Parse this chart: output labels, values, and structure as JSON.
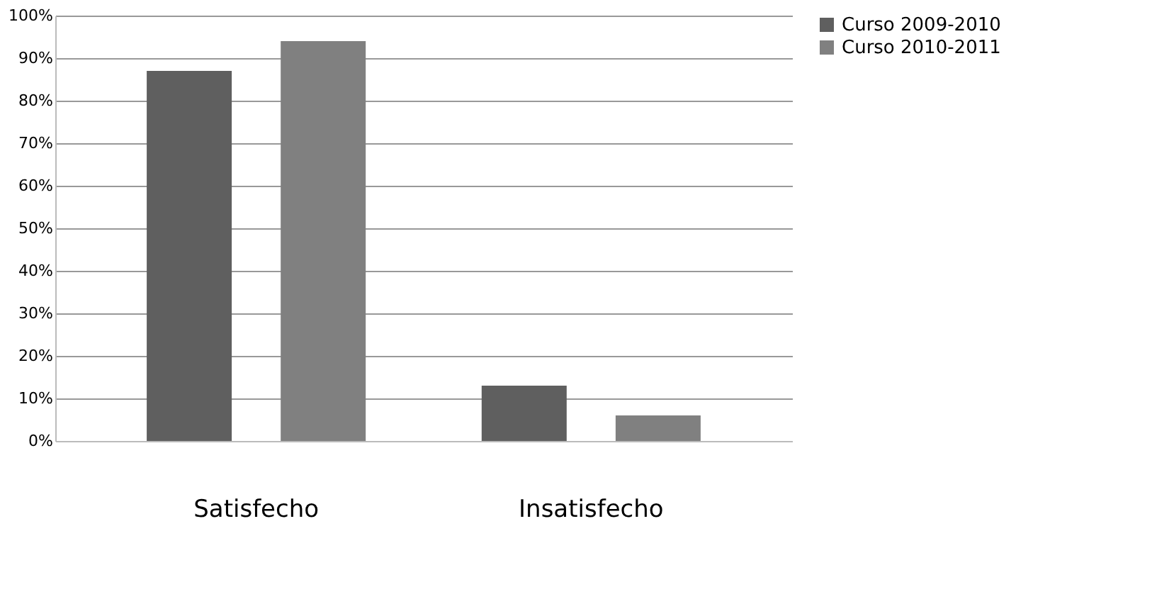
{
  "chart_data": {
    "type": "bar",
    "categories": [
      "Satisfecho",
      "Insatisfecho"
    ],
    "series": [
      {
        "name": "Curso 2009-2010",
        "color": "#5f5f5f",
        "values": [
          87,
          13
        ]
      },
      {
        "name": "Curso 2010-2011",
        "color": "#808080",
        "values": [
          94,
          6
        ]
      }
    ],
    "ylim": [
      0,
      100
    ],
    "yticks": [
      {
        "value": 0,
        "label": "0%"
      },
      {
        "value": 10,
        "label": "10%"
      },
      {
        "value": 20,
        "label": "20%"
      },
      {
        "value": 30,
        "label": "30%"
      },
      {
        "value": 40,
        "label": "40%"
      },
      {
        "value": 50,
        "label": "50%"
      },
      {
        "value": 60,
        "label": "60%"
      },
      {
        "value": 70,
        "label": "70%"
      },
      {
        "value": 80,
        "label": "80%"
      },
      {
        "value": 90,
        "label": "90%"
      },
      {
        "value": 100,
        "label": "100%"
      }
    ],
    "grid": "y",
    "legend": "right"
  }
}
